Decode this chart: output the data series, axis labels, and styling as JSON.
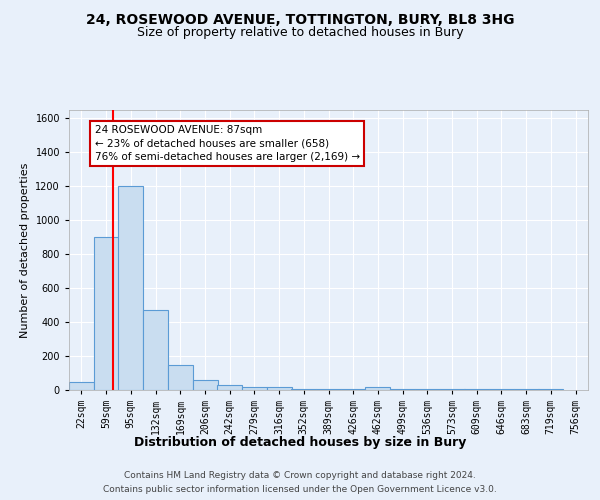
{
  "title1": "24, ROSEWOOD AVENUE, TOTTINGTON, BURY, BL8 3HG",
  "title2": "Size of property relative to detached houses in Bury",
  "xlabel": "Distribution of detached houses by size in Bury",
  "ylabel": "Number of detached properties",
  "bins": [
    22,
    59,
    95,
    132,
    169,
    206,
    242,
    279,
    316,
    352,
    389,
    426,
    462,
    499,
    536,
    573,
    609,
    646,
    683,
    719,
    756
  ],
  "bar_heights": [
    50,
    900,
    1200,
    470,
    150,
    60,
    30,
    20,
    20,
    5,
    5,
    5,
    20,
    5,
    5,
    5,
    5,
    5,
    5,
    5
  ],
  "bar_color": "#c9ddf0",
  "bar_edge_color": "#5b9bd5",
  "background_color": "#e8f0fa",
  "red_line_x": 87,
  "annotation_line1": "24 ROSEWOOD AVENUE: 87sqm",
  "annotation_line2": "← 23% of detached houses are smaller (658)",
  "annotation_line3": "76% of semi-detached houses are larger (2,169) →",
  "annotation_box_color": "#ffffff",
  "annotation_box_edge": "#cc0000",
  "ylim": [
    0,
    1650
  ],
  "yticks": [
    0,
    200,
    400,
    600,
    800,
    1000,
    1200,
    1400,
    1600
  ],
  "footer1": "Contains HM Land Registry data © Crown copyright and database right 2024.",
  "footer2": "Contains public sector information licensed under the Open Government Licence v3.0.",
  "title1_fontsize": 10,
  "title2_fontsize": 9,
  "xlabel_fontsize": 9,
  "ylabel_fontsize": 8,
  "tick_fontsize": 7,
  "annotation_fontsize": 7.5,
  "footer_fontsize": 6.5
}
